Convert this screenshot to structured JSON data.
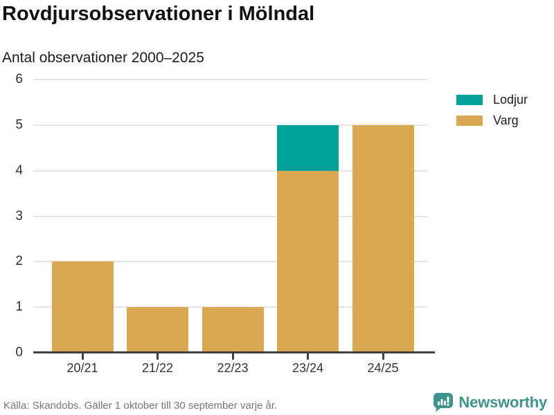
{
  "header": {
    "title": "Rovdjursobservationer i Mölndal",
    "subtitle": "Antal observationer 2000–2025"
  },
  "chart_data": {
    "type": "bar",
    "stacked": true,
    "categories": [
      "20/21",
      "21/22",
      "22/23",
      "23/24",
      "24/25"
    ],
    "series": [
      {
        "name": "Lodjur",
        "color": "#00a29a",
        "values": [
          0,
          0,
          0,
          1,
          0
        ]
      },
      {
        "name": "Varg",
        "color": "#d9a853",
        "values": [
          2,
          1,
          1,
          4,
          5
        ]
      }
    ],
    "title": "Rovdjursobservationer i Mölndal",
    "subtitle": "Antal observationer 2000–2025",
    "xlabel": "",
    "ylabel": "",
    "ylim": [
      0,
      6
    ],
    "yticks": [
      0,
      1,
      2,
      3,
      4,
      5,
      6
    ],
    "grid": true,
    "legend_position": "top-right"
  },
  "footer": {
    "source": "Källa: Skandobs. Gäller 1 oktober till 30 september varje år.",
    "brand": "Newsworthy"
  },
  "colors": {
    "lodjur": "#00a29a",
    "varg": "#d9a853",
    "brand_teal": "#3e938c",
    "grid": "#e4e4e4",
    "axis": "#3f3f3f",
    "text_dark": "#121212",
    "text_gray": "#73767c"
  }
}
